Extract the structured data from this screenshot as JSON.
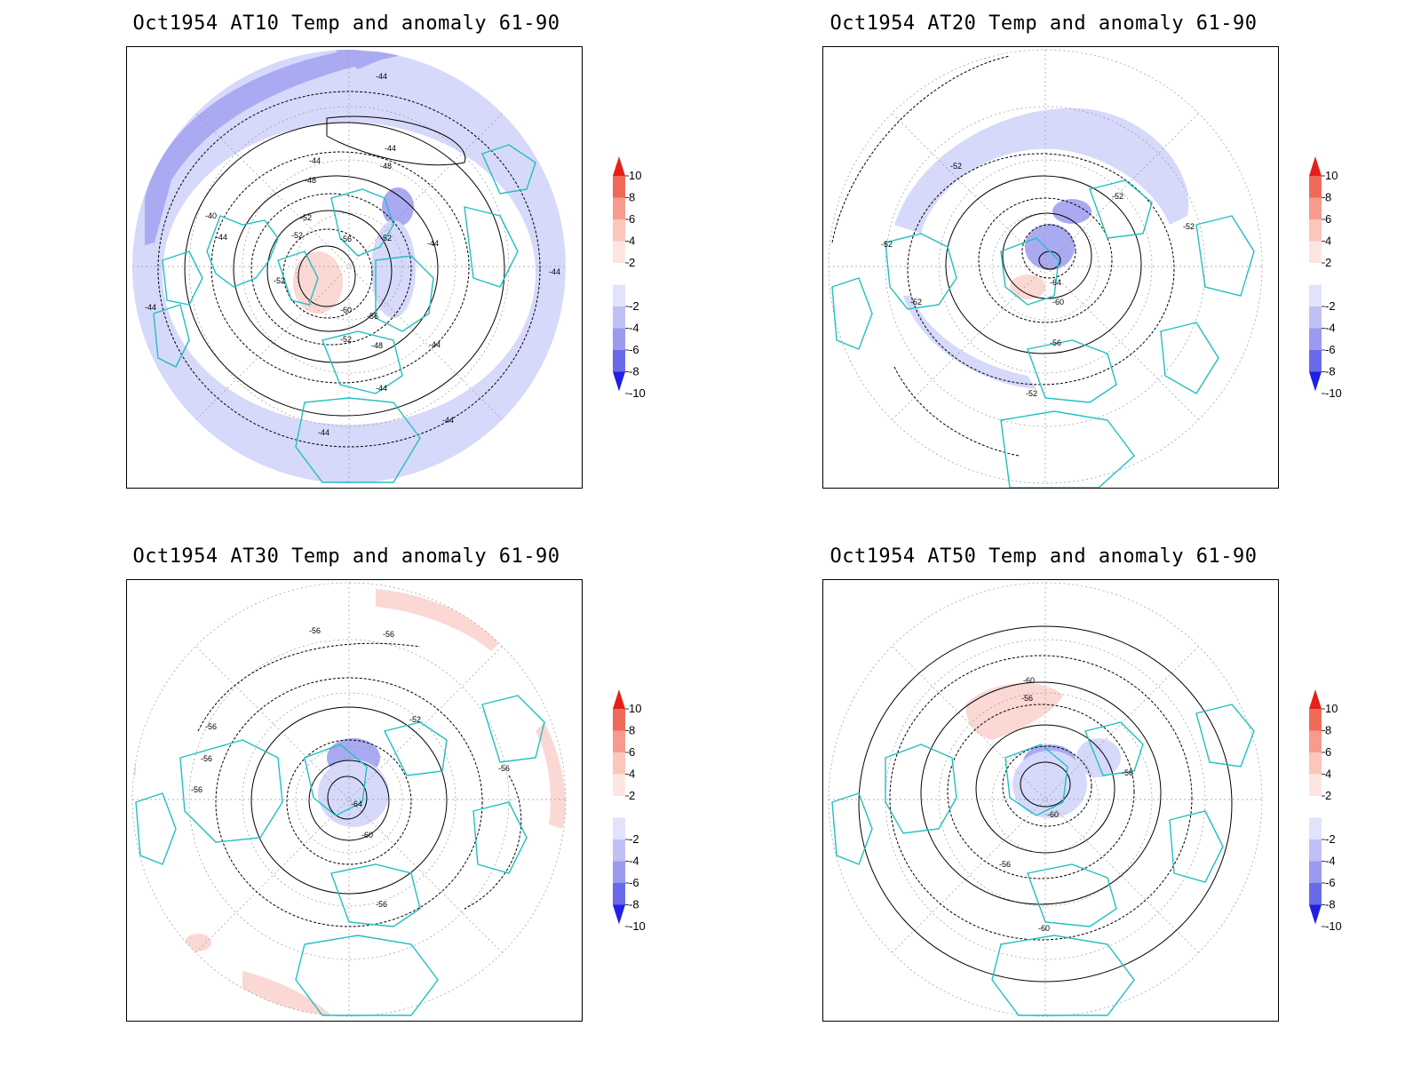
{
  "panels": [
    {
      "title": "Oct1954 AT10 Temp and anomaly 61-90",
      "contour_labels": [
        "-44",
        "-44",
        "-44",
        "-48",
        "-48",
        "-40",
        "-44",
        "-52",
        "-52",
        "-56",
        "-52",
        "-44",
        "-52",
        "-60",
        "-56",
        "-52",
        "-48",
        "-44",
        "-44",
        "-44",
        "-44",
        "-44",
        "-44"
      ]
    },
    {
      "title": "Oct1954 AT20 Temp and anomaly 61-90",
      "contour_labels": [
        "-52",
        "-52",
        "-52",
        "-52",
        "-64",
        "-60",
        "-52",
        "-56",
        "-52"
      ]
    },
    {
      "title": "Oct1954 AT30 Temp and anomaly 61-90",
      "contour_labels": [
        "-56",
        "-56",
        "-56",
        "-52",
        "-56",
        "-56",
        "-56",
        "-64",
        "-60",
        "-56"
      ]
    },
    {
      "title": "Oct1954 AT50 Temp and anomaly 61-90",
      "contour_labels": [
        "-60",
        "-56",
        "-56",
        "-60",
        "-56",
        "-60"
      ]
    }
  ],
  "colorbar": {
    "labels": [
      "10",
      "8",
      "6",
      "4",
      "2",
      "-2",
      "-4",
      "-6",
      "-8",
      "-10"
    ],
    "colors": [
      "#e52018",
      "#f06a5a",
      "#f69b8e",
      "#fbc6bc",
      "#fde6e2",
      "#ffffff",
      "#e2e2fb",
      "#c0c0f6",
      "#9a9af0",
      "#6a6ae8",
      "#2020e2"
    ]
  },
  "colors": {
    "land_outline": "#20c0c0",
    "anomaly_neg_light": "#d6d9fa",
    "anomaly_neg_mid": "#aaaaf2",
    "anomaly_pos_light": "#fbd8d4",
    "contour": "#000000"
  }
}
